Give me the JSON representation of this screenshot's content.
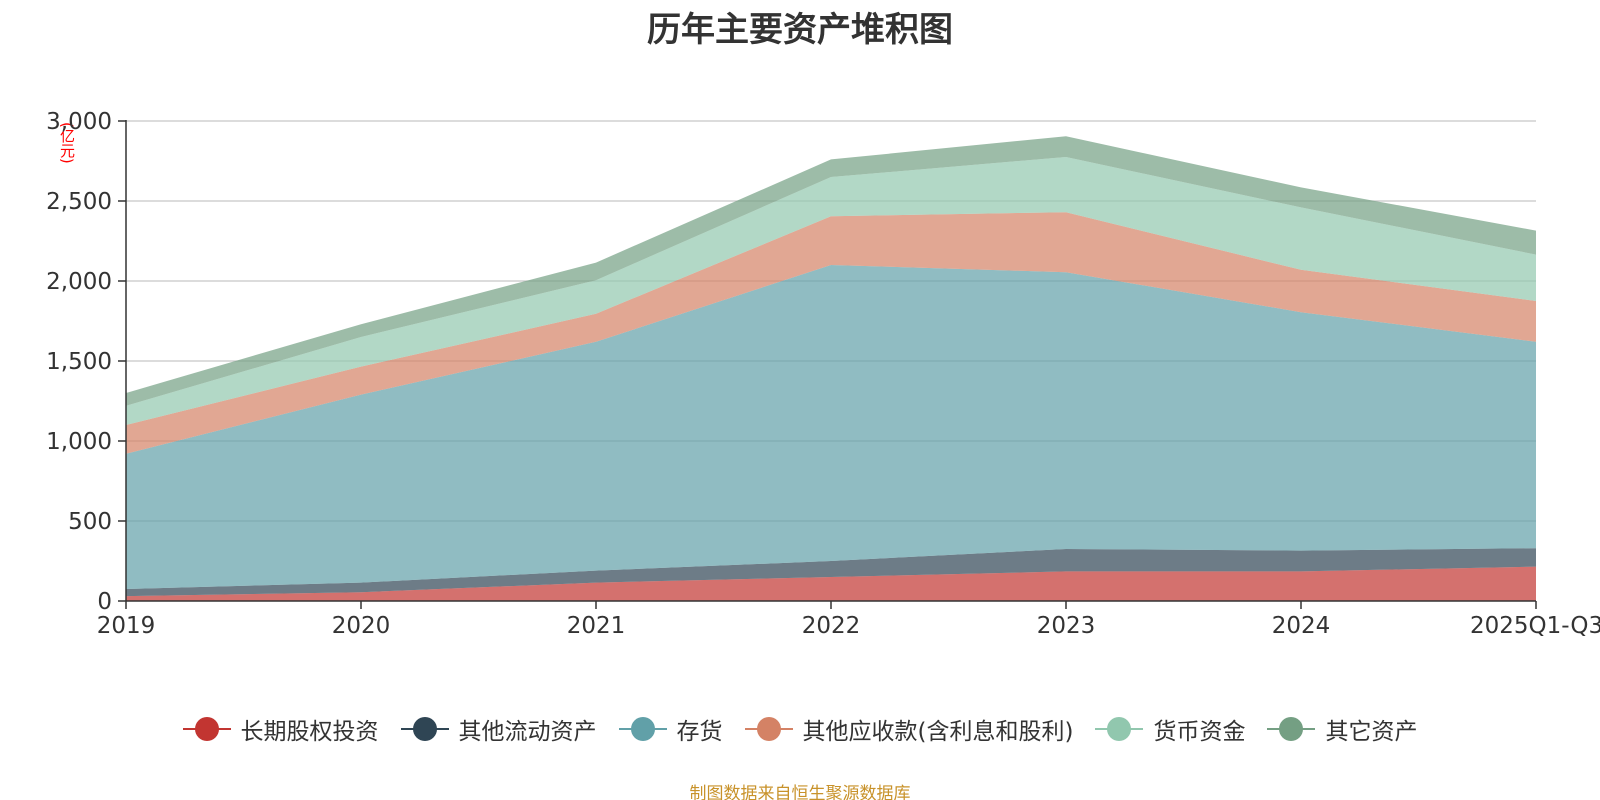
{
  "chart_data": {
    "type": "area",
    "stacked": true,
    "title": "历年主要资产堆积图",
    "y_unit": "(亿元)",
    "categories": [
      "2019",
      "2020",
      "2021",
      "2022",
      "2023",
      "2024",
      "2025Q1-Q3"
    ],
    "ylim": [
      0,
      3000
    ],
    "yticks": [
      0,
      500,
      1000,
      1500,
      2000,
      2500,
      3000
    ],
    "ytick_labels": [
      "0",
      "500",
      "1,000",
      "1,500",
      "2,000",
      "2,500",
      "3,000"
    ],
    "grid": true,
    "legend_position": "bottom",
    "series": [
      {
        "name": "长期股权投资",
        "color": "#c23531",
        "values": [
          30,
          55,
          115,
          150,
          185,
          185,
          215
        ]
      },
      {
        "name": "其他流动资产",
        "color": "#2f4554",
        "values": [
          45,
          60,
          75,
          100,
          140,
          130,
          115
        ]
      },
      {
        "name": "存货",
        "color": "#61a0a8",
        "values": [
          845,
          1175,
          1430,
          1850,
          1730,
          1490,
          1290
        ]
      },
      {
        "name": "其他应收款(含利息和股利)",
        "color": "#d48265",
        "values": [
          180,
          175,
          175,
          305,
          375,
          265,
          255
        ]
      },
      {
        "name": "货币资金",
        "color": "#91c7ae",
        "values": [
          120,
          185,
          210,
          245,
          345,
          390,
          290
        ]
      },
      {
        "name": "其它资产",
        "color": "#749f83",
        "values": [
          80,
          80,
          110,
          110,
          130,
          125,
          150
        ]
      }
    ]
  },
  "source_text": "制图数据来自恒生聚源数据库"
}
